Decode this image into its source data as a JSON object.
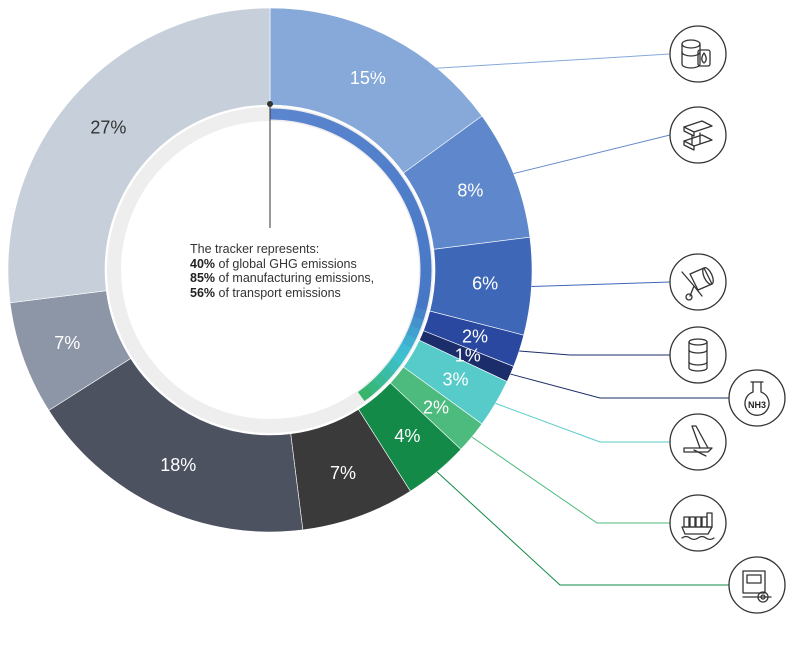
{
  "chart_data": {
    "type": "donut",
    "slices": [
      {
        "label": "15%",
        "value": 15,
        "color": "#86a9da",
        "icon": "oil-gas-barrels-icon"
      },
      {
        "label": "8%",
        "value": 8,
        "color": "#5f88cc",
        "icon": "steel-beam-icon"
      },
      {
        "label": "6%",
        "value": 6,
        "color": "#3f67b8",
        "icon": "cement-mixer-icon"
      },
      {
        "label": "2%",
        "value": 2,
        "color": "#2a48a0",
        "icon": "aluminium-can-icon"
      },
      {
        "label": "1%",
        "value": 1,
        "color": "#1c2d6b",
        "icon": "ammonia-flask-icon"
      },
      {
        "label": "3%",
        "value": 3,
        "color": "#56cbc9",
        "icon": "aviation-plane-tail-icon"
      },
      {
        "label": "2%",
        "value": 2,
        "color": "#4dbb7e",
        "icon": "shipping-vessel-icon"
      },
      {
        "label": "4%",
        "value": 4,
        "color": "#138a48",
        "icon": "truck-icon"
      },
      {
        "label": "7%",
        "value": 7,
        "color": "#3a3a3a",
        "icon": ""
      },
      {
        "label": "18%",
        "value": 18,
        "color": "#4c5260",
        "icon": ""
      },
      {
        "label": "7%",
        "value": 7,
        "color": "#8c96a6",
        "icon": ""
      },
      {
        "label": "27%",
        "value": 27,
        "color": "#c7d0da",
        "icon": ""
      }
    ],
    "tracker_progress": 40
  },
  "center": {
    "intro": "The tracker represents:",
    "line1_pct": "40%",
    "line1_rest": " of global GHG emissions",
    "line2_pct": "85%",
    "line2_rest": " of manufacturing emissions,",
    "line3_pct": "56%",
    "line3_rest": " of transport emissions"
  },
  "icon_labels": {
    "ammonia": "NH3"
  }
}
